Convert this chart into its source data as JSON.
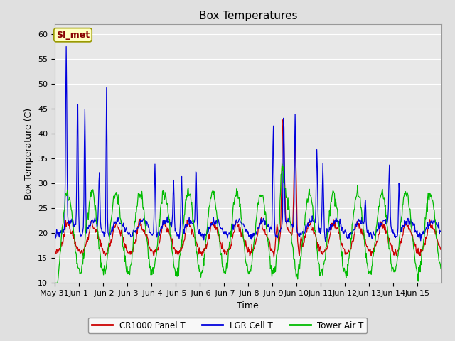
{
  "title": "Box Temperatures",
  "xlabel": "Time",
  "ylabel": "Box Temperature (C)",
  "ylim": [
    10,
    62
  ],
  "yticks": [
    10,
    15,
    20,
    25,
    30,
    35,
    40,
    45,
    50,
    55,
    60
  ],
  "xtick_labels": [
    "May 31",
    "Jun 1",
    " Jun 2",
    " Jun 3",
    " Jun 4",
    " Jun 5",
    " Jun 6",
    " Jun 7",
    " Jun 8",
    " Jun 9",
    "Jun 10",
    "Jun 11",
    "Jun 12",
    "Jun 13",
    "Jun 14",
    "Jun 15"
  ],
  "background_color": "#e0e0e0",
  "plot_bg_color": "#e8e8e8",
  "grid_color": "#ffffff",
  "legend_label": "SI_met",
  "legend_bg": "#ffffc0",
  "legend_border": "#999900",
  "line_colors": {
    "panel": "#cc0000",
    "lgr": "#0000dd",
    "tower": "#00bb00"
  },
  "series_labels": [
    "CR1000 Panel T",
    "LGR Cell T",
    "Tower Air T"
  ],
  "title_fontsize": 11,
  "axis_fontsize": 9,
  "tick_fontsize": 8
}
